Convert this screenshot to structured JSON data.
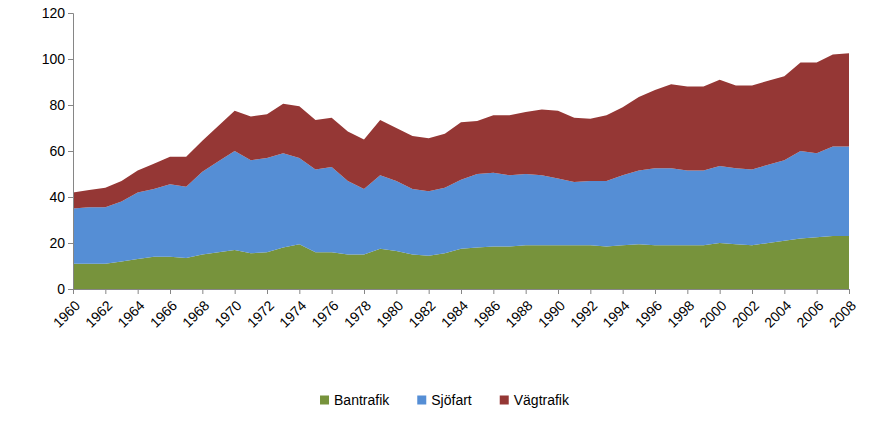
{
  "chart_data": {
    "type": "area",
    "stacked": true,
    "legend": "bottom",
    "grid": false,
    "x": [
      1960,
      1961,
      1962,
      1963,
      1964,
      1965,
      1966,
      1967,
      1968,
      1969,
      1970,
      1971,
      1972,
      1973,
      1974,
      1975,
      1976,
      1977,
      1978,
      1979,
      1980,
      1981,
      1982,
      1983,
      1984,
      1985,
      1986,
      1987,
      1988,
      1989,
      1990,
      1991,
      1992,
      1993,
      1994,
      1995,
      1996,
      1997,
      1998,
      1999,
      2000,
      2001,
      2002,
      2003,
      2004,
      2005,
      2006,
      2007,
      2008
    ],
    "xlim": [
      1960,
      2008
    ],
    "xticks": [
      1960,
      1962,
      1964,
      1966,
      1968,
      1970,
      1972,
      1974,
      1976,
      1978,
      1980,
      1982,
      1984,
      1986,
      1988,
      1990,
      1992,
      1994,
      1996,
      1998,
      2000,
      2002,
      2004,
      2006,
      2008
    ],
    "ylim": [
      0,
      120
    ],
    "yticks": [
      0,
      20,
      40,
      60,
      80,
      100,
      120
    ],
    "series": [
      {
        "name": "Bantrafik",
        "color": "#77933c",
        "values": [
          11,
          11,
          11,
          12,
          13,
          14,
          14,
          13.5,
          15,
          16,
          17,
          15.5,
          16,
          18,
          19.5,
          16,
          16,
          15,
          15,
          17.5,
          16.5,
          15,
          14.5,
          15.5,
          17.5,
          18,
          18.5,
          18.5,
          19,
          19,
          19,
          19,
          19,
          18.5,
          19,
          19.5,
          19,
          19,
          19,
          19,
          20,
          19.5,
          19,
          20,
          21,
          22,
          22.5,
          23,
          23
        ]
      },
      {
        "name": "Sjöfart",
        "color": "#558ed5",
        "values": [
          24,
          24.5,
          24.5,
          26,
          29,
          29.5,
          31.5,
          31,
          36,
          39.5,
          43,
          40.5,
          41,
          41,
          37.5,
          36,
          37,
          32,
          28.5,
          32,
          30.5,
          28.5,
          28,
          28.5,
          30,
          32,
          32,
          31,
          31,
          30.5,
          29,
          27.5,
          28,
          28.5,
          30.5,
          32,
          33.5,
          33.5,
          32.5,
          32.5,
          33.5,
          33,
          33,
          34,
          35,
          38,
          36.5,
          39,
          39
        ]
      },
      {
        "name": "Vägtrafik",
        "color": "#953735",
        "values": [
          7,
          7.5,
          8.5,
          9,
          9.5,
          11,
          12,
          13,
          13.5,
          15.5,
          17.5,
          19,
          19,
          21.5,
          22.5,
          21.5,
          21.5,
          21.5,
          21.5,
          24,
          23,
          23,
          23,
          23.5,
          25,
          23,
          25,
          26,
          27,
          28.5,
          29.5,
          28,
          27,
          28.5,
          29.5,
          32,
          34,
          36.5,
          36.5,
          36.5,
          37.5,
          36,
          36.5,
          36.5,
          36.5,
          38.5,
          39.5,
          40,
          40.5
        ]
      }
    ]
  }
}
